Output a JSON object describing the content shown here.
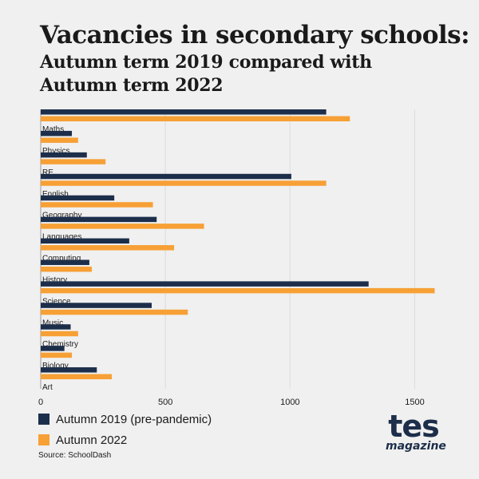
{
  "title": "Vacancies in secondary schools:",
  "subtitle": "Autumn term 2019 compared with Autumn term 2022",
  "source": "Source: SchoolDash",
  "logo": {
    "main": "tes",
    "sub": "magazine"
  },
  "colors": {
    "series_2019": "#1c2e4a",
    "series_2022": "#f7a035",
    "grid": "#dcdcdc"
  },
  "chart_data": {
    "type": "bar",
    "orientation": "horizontal",
    "title": "",
    "xlabel": "",
    "ylabel": "",
    "xlim": [
      0,
      1600
    ],
    "xticks": [
      0,
      500,
      1000,
      1500
    ],
    "grid": true,
    "legend_position": "bottom-left",
    "categories": [
      "Maths",
      "Physics",
      "RE",
      "English",
      "Geography",
      "Languages",
      "Computing",
      "History",
      "Science",
      "Music",
      "Chemistry",
      "Biology",
      "Art"
    ],
    "series": [
      {
        "name": "Autumn 2019 (pre-pandemic)",
        "color": "#1c2e4a",
        "values": [
          1145,
          125,
          185,
          1005,
          295,
          465,
          355,
          195,
          1315,
          445,
          120,
          95,
          225
        ]
      },
      {
        "name": "Autumn 2022",
        "color": "#f7a035",
        "values": [
          1240,
          150,
          260,
          1145,
          450,
          655,
          535,
          205,
          1580,
          590,
          150,
          125,
          285
        ]
      }
    ]
  }
}
